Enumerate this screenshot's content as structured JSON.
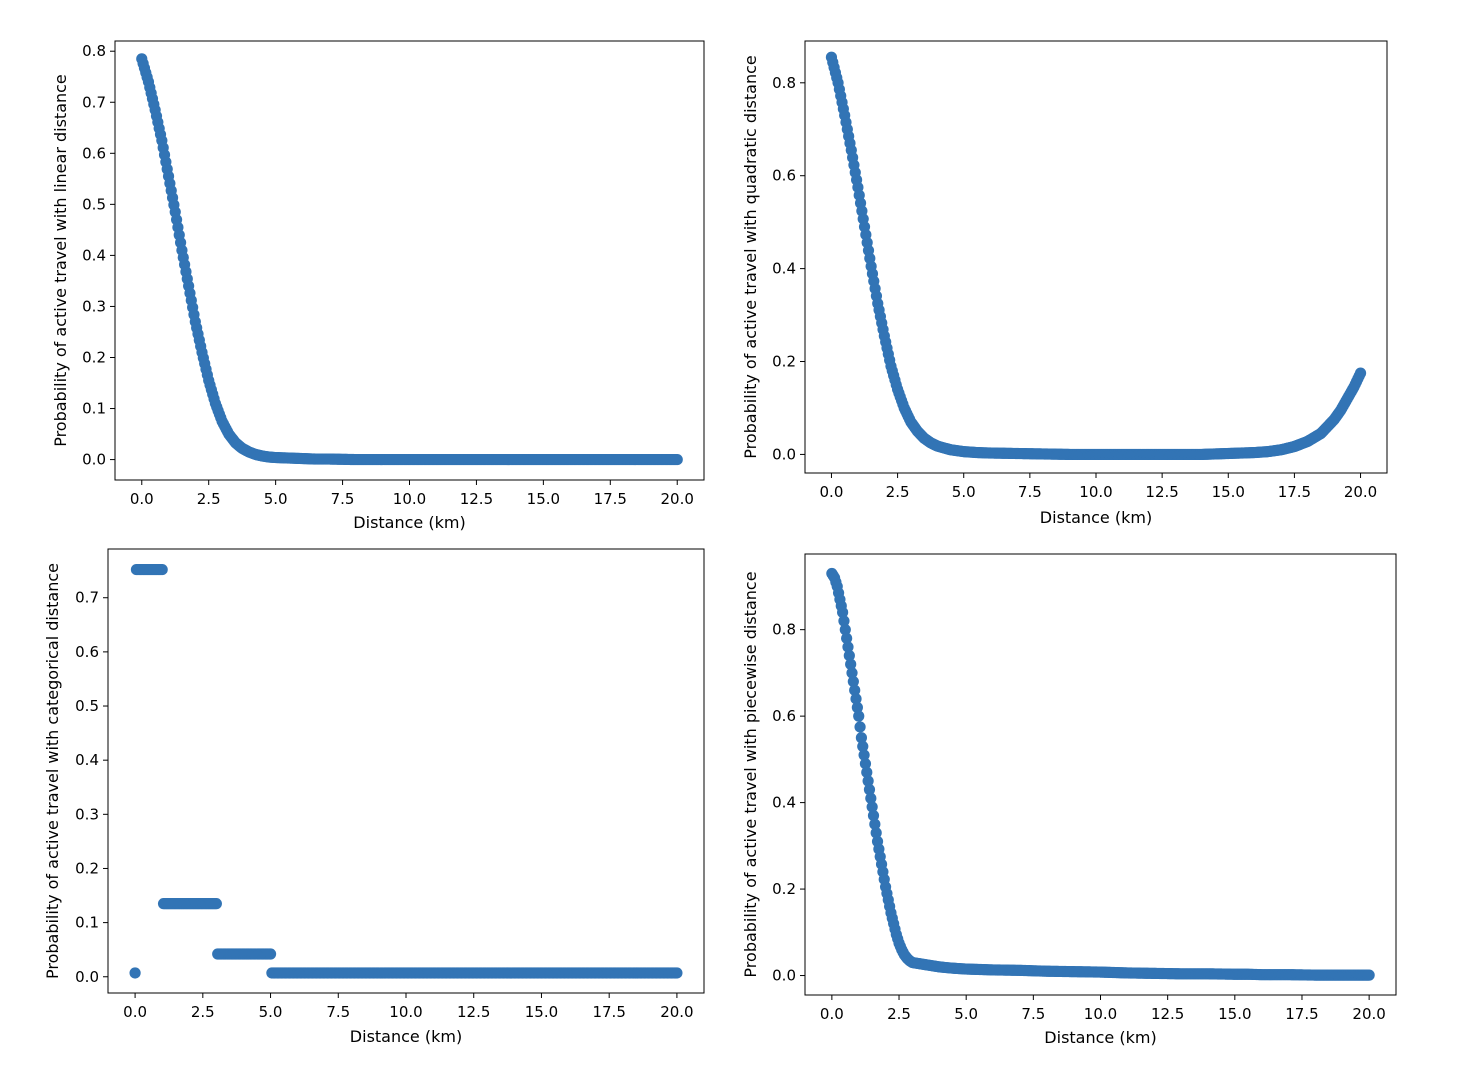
{
  "chart_data": [
    {
      "type": "scatter",
      "xlabel": "Distance (km)",
      "ylabel": "Probability of active travel with linear distance",
      "xlim": [
        -1.0,
        21.0
      ],
      "ylim": [
        -0.04,
        0.82
      ],
      "xticks": [
        "0.0",
        "2.5",
        "5.0",
        "7.5",
        "10.0",
        "12.5",
        "15.0",
        "17.5",
        "20.0"
      ],
      "yticks": [
        "0.0",
        "0.1",
        "0.2",
        "0.3",
        "0.4",
        "0.5",
        "0.6",
        "0.7",
        "0.8"
      ],
      "marker_color": "#3274b5",
      "x": [
        0,
        0.25,
        0.5,
        0.75,
        1,
        1.25,
        1.5,
        1.75,
        2,
        2.25,
        2.5,
        2.75,
        3,
        3.25,
        3.5,
        3.75,
        4,
        4.25,
        4.5,
        4.75,
        5,
        5.5,
        6,
        6.5,
        7,
        8,
        9,
        10,
        11,
        12,
        13,
        14,
        15,
        16,
        17,
        18,
        19,
        20
      ],
      "y": [
        0.785,
        0.74,
        0.685,
        0.625,
        0.555,
        0.485,
        0.41,
        0.34,
        0.27,
        0.21,
        0.155,
        0.11,
        0.075,
        0.05,
        0.033,
        0.022,
        0.015,
        0.01,
        0.007,
        0.005,
        0.004,
        0.003,
        0.002,
        0.001,
        0.001,
        0,
        0,
        0,
        0,
        0,
        0,
        0,
        0,
        0,
        0,
        0,
        0,
        0
      ]
    },
    {
      "type": "scatter",
      "xlabel": "Distance (km)",
      "ylabel": "Probability of active travel with quadratic distance",
      "xlim": [
        -1.0,
        21.0
      ],
      "ylim": [
        -0.04,
        0.89
      ],
      "xticks": [
        "0.0",
        "2.5",
        "5.0",
        "7.5",
        "10.0",
        "12.5",
        "15.0",
        "17.5",
        "20.0"
      ],
      "yticks": [
        "0.0",
        "0.2",
        "0.4",
        "0.6",
        "0.8"
      ],
      "marker_color": "#3274b5",
      "x": [
        0,
        0.25,
        0.5,
        0.75,
        1,
        1.25,
        1.5,
        1.75,
        2,
        2.25,
        2.5,
        2.75,
        3,
        3.25,
        3.5,
        3.75,
        4,
        4.5,
        5,
        5.5,
        6,
        7,
        8,
        9,
        10,
        11,
        12,
        13,
        14,
        15,
        16,
        16.5,
        17,
        17.5,
        18,
        18.5,
        19,
        19.25,
        19.5,
        19.75,
        20
      ],
      "y": [
        0.855,
        0.8,
        0.73,
        0.655,
        0.575,
        0.49,
        0.405,
        0.325,
        0.255,
        0.19,
        0.14,
        0.1,
        0.07,
        0.05,
        0.035,
        0.025,
        0.018,
        0.01,
        0.006,
        0.004,
        0.003,
        0.002,
        0.001,
        0,
        0,
        0,
        0,
        0,
        0,
        0.002,
        0.004,
        0.006,
        0.01,
        0.017,
        0.028,
        0.045,
        0.075,
        0.095,
        0.12,
        0.145,
        0.175
      ]
    },
    {
      "type": "scatter",
      "xlabel": "Distance (km)",
      "ylabel": "Probability of active travel with categorical distance",
      "xlim": [
        -1.0,
        21.0
      ],
      "ylim": [
        -0.03,
        0.79
      ],
      "xticks": [
        "0.0",
        "2.5",
        "5.0",
        "7.5",
        "10.0",
        "12.5",
        "15.0",
        "17.5",
        "20.0"
      ],
      "yticks": [
        "0.0",
        "0.1",
        "0.2",
        "0.3",
        "0.4",
        "0.5",
        "0.6",
        "0.7"
      ],
      "marker_color": "#3274b5",
      "x": [
        0,
        0.05,
        0.25,
        0.5,
        0.75,
        1.0,
        1.05,
        1.5,
        2.0,
        2.5,
        3.0,
        3.05,
        3.5,
        4.0,
        4.5,
        5.0,
        5.05,
        6,
        7,
        8,
        9,
        10,
        11,
        12,
        13,
        14,
        15,
        16,
        17,
        18,
        19,
        20
      ],
      "y": [
        0.007,
        0.752,
        0.752,
        0.752,
        0.752,
        0.752,
        0.135,
        0.135,
        0.135,
        0.135,
        0.135,
        0.042,
        0.042,
        0.042,
        0.042,
        0.042,
        0.007,
        0.007,
        0.007,
        0.007,
        0.007,
        0.007,
        0.007,
        0.007,
        0.007,
        0.007,
        0.007,
        0.007,
        0.007,
        0.007,
        0.007,
        0.007
      ]
    },
    {
      "type": "scatter",
      "xlabel": "Distance (km)",
      "ylabel": "Probability of active travel with piecewise distance",
      "xlim": [
        -1.0,
        21.0
      ],
      "ylim": [
        -0.045,
        0.975
      ],
      "xticks": [
        "0.0",
        "2.5",
        "5.0",
        "7.5",
        "10.0",
        "12.5",
        "15.0",
        "17.5",
        "20.0"
      ],
      "yticks": [
        "0.0",
        "0.2",
        "0.4",
        "0.6",
        "0.8"
      ],
      "marker_color": "#3274b5",
      "x": [
        0,
        0.1,
        0.2,
        0.3,
        0.4,
        0.5,
        0.6,
        0.7,
        0.8,
        0.9,
        1.0,
        1.1,
        1.2,
        1.3,
        1.4,
        1.5,
        1.6,
        1.7,
        1.8,
        1.9,
        2.0,
        2.1,
        2.2,
        2.3,
        2.4,
        2.5,
        2.6,
        2.7,
        2.8,
        2.9,
        3.0,
        3.5,
        4,
        4.5,
        5,
        6,
        7,
        7.5,
        8,
        9,
        10,
        10.5,
        11,
        12,
        13,
        14,
        15,
        15.5,
        16,
        17,
        18,
        19,
        20
      ],
      "y": [
        0.93,
        0.92,
        0.9,
        0.87,
        0.84,
        0.8,
        0.76,
        0.72,
        0.68,
        0.64,
        0.6,
        0.55,
        0.51,
        0.47,
        0.43,
        0.39,
        0.35,
        0.31,
        0.275,
        0.24,
        0.205,
        0.175,
        0.145,
        0.12,
        0.095,
        0.075,
        0.06,
        0.048,
        0.04,
        0.034,
        0.03,
        0.025,
        0.02,
        0.017,
        0.015,
        0.013,
        0.012,
        0.011,
        0.01,
        0.009,
        0.008,
        0.007,
        0.006,
        0.005,
        0.004,
        0.004,
        0.003,
        0.003,
        0.002,
        0.002,
        0.001,
        0.001,
        0.001
      ]
    }
  ]
}
